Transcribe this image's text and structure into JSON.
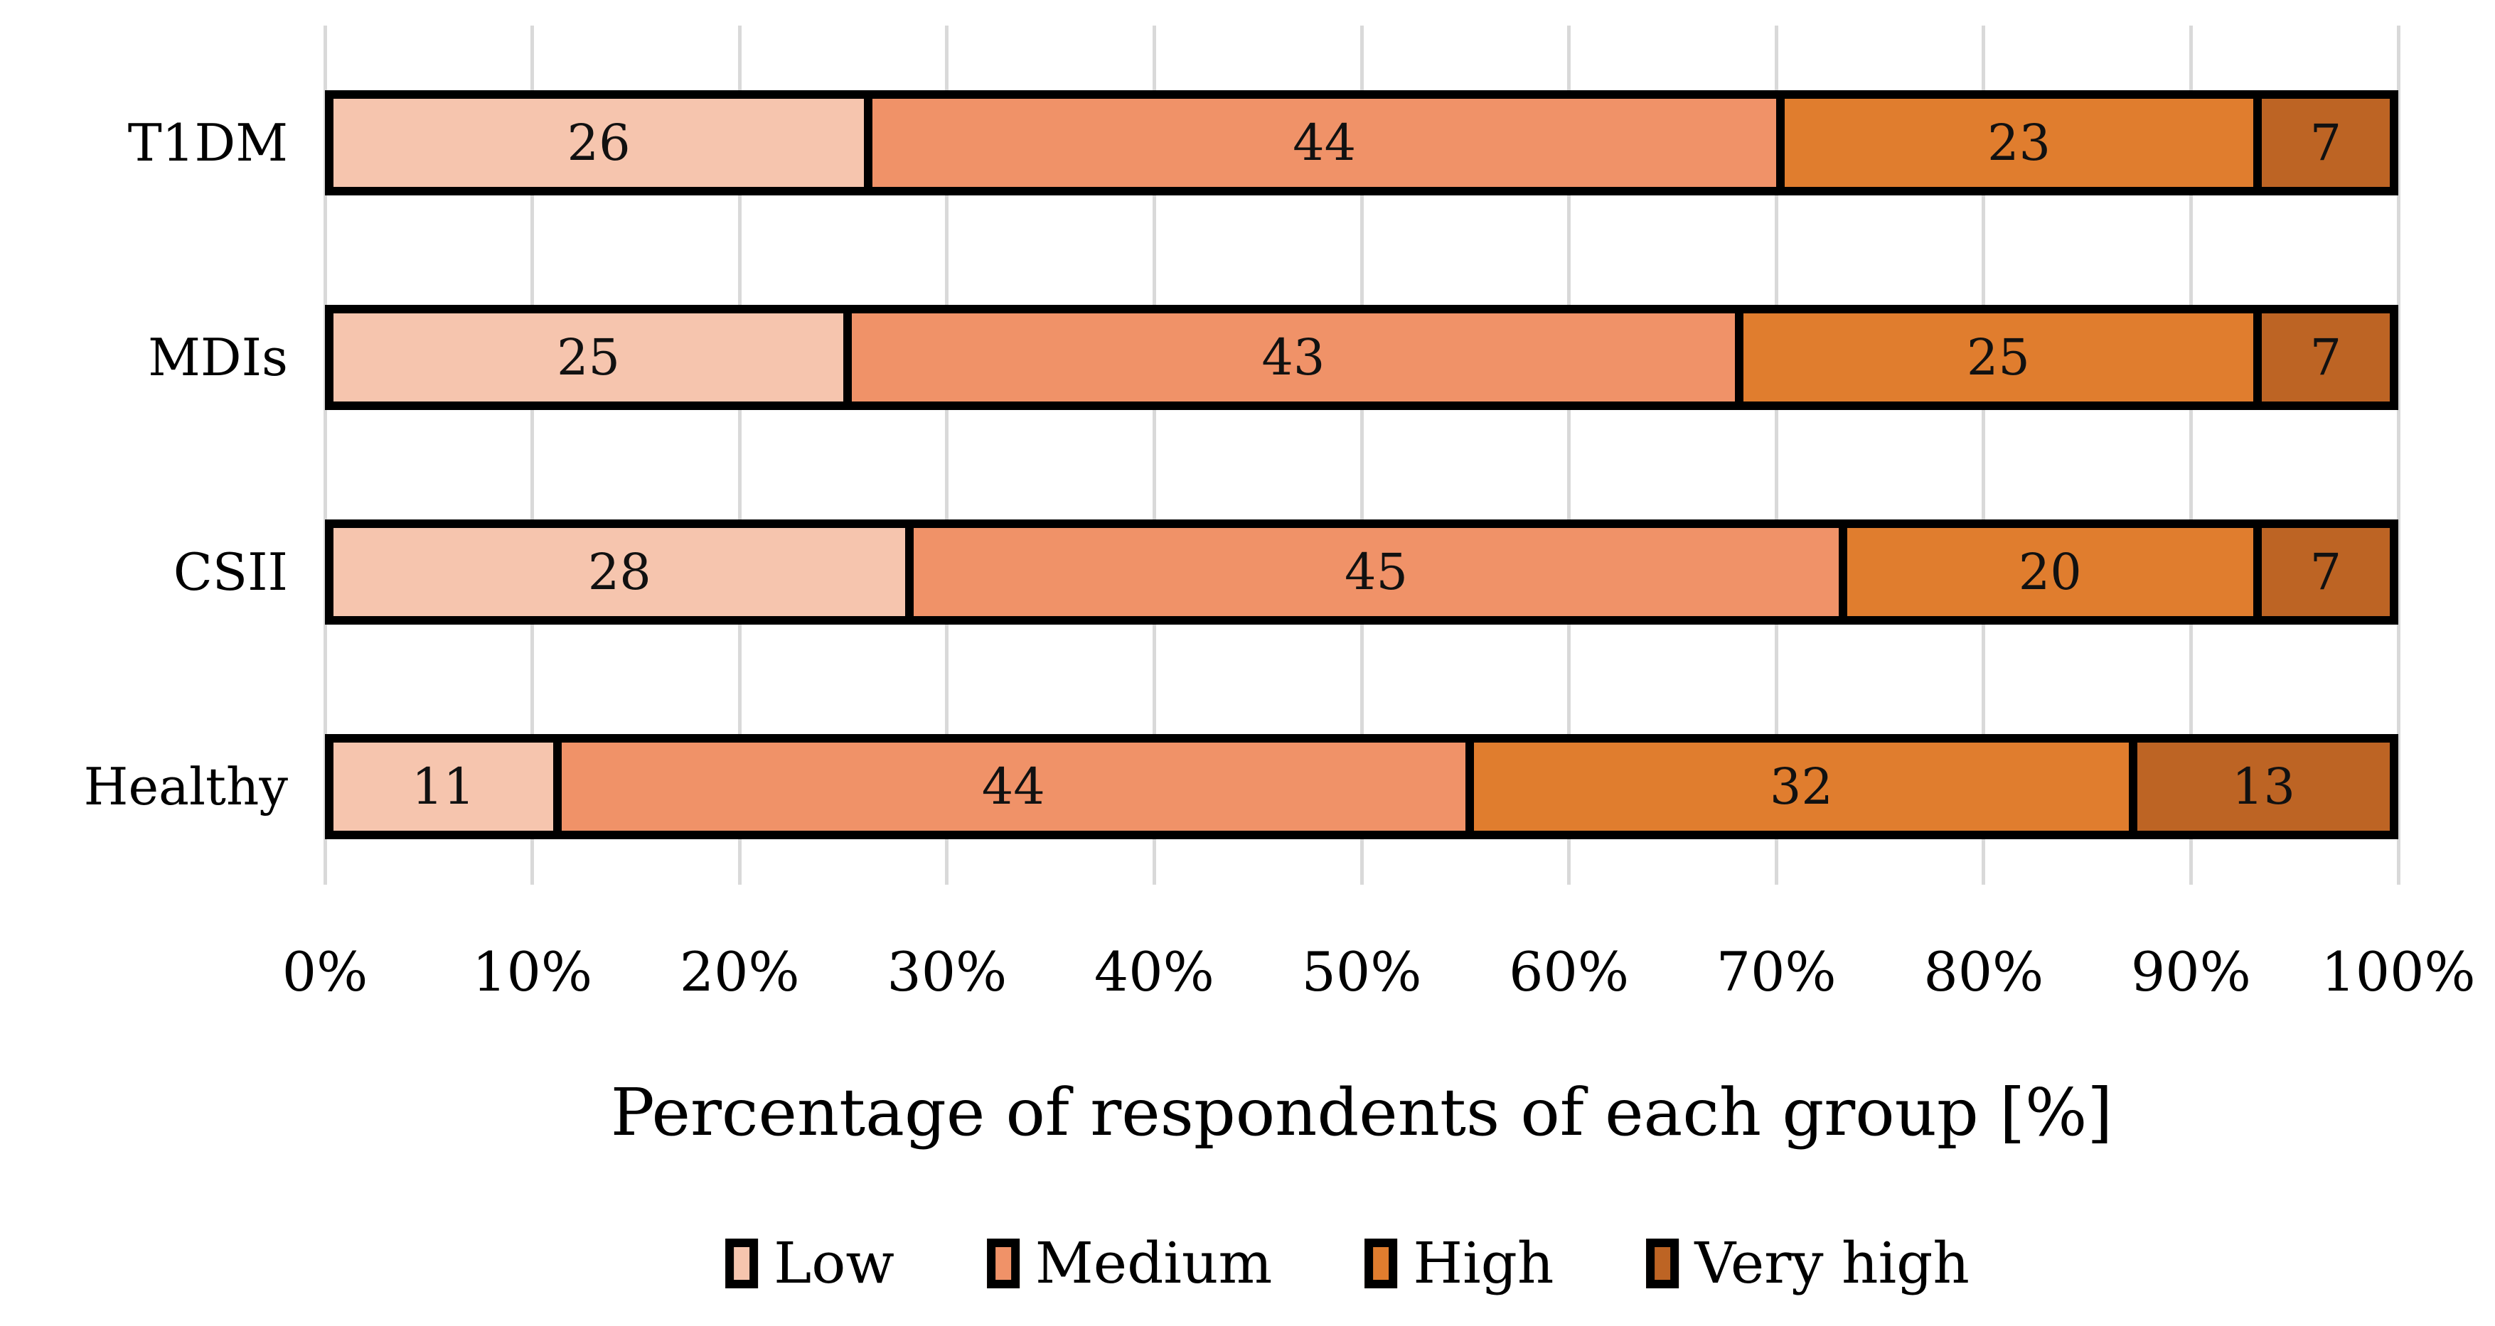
{
  "figure": {
    "background": "#ffffff"
  },
  "chart_data": {
    "type": "bar",
    "variant": "horizontal-stacked",
    "title": "",
    "xlabel": "Percentage of respondents of each group [%]",
    "ylabel": "",
    "xlim": [
      0,
      100
    ],
    "x_ticks": [
      "0%",
      "10%",
      "20%",
      "30%",
      "40%",
      "50%",
      "60%",
      "70%",
      "80%",
      "90%",
      "100%"
    ],
    "grid": "vertical-gridlines-every-10-percent",
    "gridline_color": "#d9d9d9",
    "bar_border_color": "#000000",
    "legend_position": "bottom",
    "categories": [
      "T1DM",
      "MDIs",
      "CSII",
      "Healthy"
    ],
    "series": [
      {
        "name": "Low",
        "color": "#f6c5ae",
        "values": [
          26,
          25,
          28,
          11
        ]
      },
      {
        "name": "Medium",
        "color": "#f09268",
        "values": [
          44,
          43,
          45,
          44
        ]
      },
      {
        "name": "High",
        "color": "#e07d2e",
        "values": [
          23,
          25,
          20,
          32
        ]
      },
      {
        "name": "Very high",
        "color": "#bd6424",
        "values": [
          7,
          7,
          7,
          13
        ]
      }
    ]
  }
}
